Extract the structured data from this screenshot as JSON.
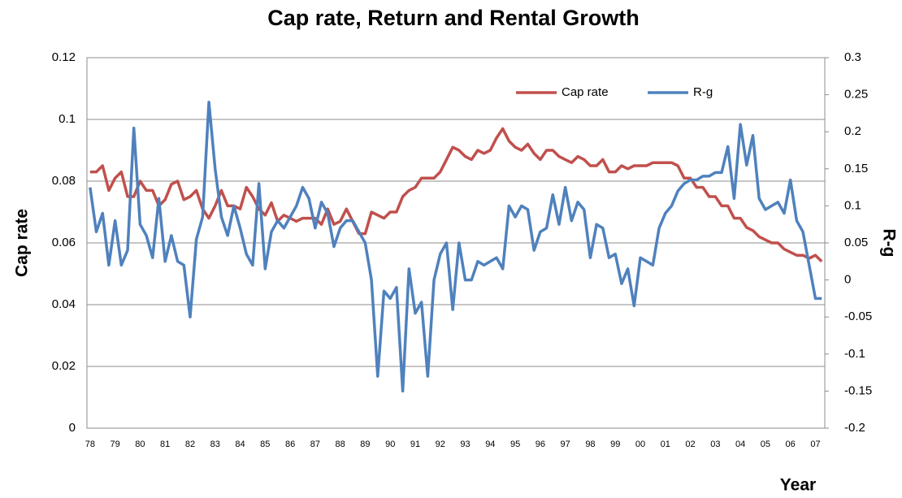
{
  "chart_data": {
    "type": "line",
    "title": "Cap rate, Return and Rental Growth",
    "x_label": "Year",
    "y_label": "Cap rate",
    "y2_label": "R-g",
    "categories": [
      "78",
      null,
      null,
      null,
      "79",
      null,
      null,
      null,
      "80",
      null,
      null,
      null,
      "81",
      null,
      null,
      null,
      "82",
      null,
      null,
      null,
      "83",
      null,
      null,
      null,
      "84",
      null,
      null,
      null,
      "85",
      null,
      null,
      null,
      "86",
      null,
      null,
      null,
      "87",
      null,
      null,
      null,
      "88",
      null,
      null,
      null,
      "89",
      null,
      null,
      null,
      "90",
      null,
      null,
      null,
      "91",
      null,
      null,
      null,
      "92",
      null,
      null,
      null,
      "93",
      null,
      null,
      null,
      "94",
      null,
      null,
      null,
      "95",
      null,
      null,
      null,
      "96",
      null,
      null,
      null,
      "97",
      null,
      null,
      null,
      "98",
      null,
      null,
      null,
      "99",
      null,
      null,
      null,
      "00",
      null,
      null,
      null,
      "01",
      null,
      null,
      null,
      "02",
      null,
      null,
      null,
      "03",
      null,
      null,
      null,
      "04",
      null,
      null,
      null,
      "05",
      null,
      null,
      null,
      "06",
      null,
      null,
      null,
      "07",
      null
    ],
    "series": [
      {
        "name": "Cap rate",
        "color": "#c0504d",
        "axis": "y",
        "values": [
          0.083,
          0.083,
          0.085,
          0.077,
          0.081,
          0.083,
          0.075,
          0.075,
          0.08,
          0.077,
          0.077,
          0.072,
          0.074,
          0.079,
          0.08,
          0.074,
          0.075,
          0.077,
          0.071,
          0.068,
          0.072,
          0.077,
          0.072,
          0.072,
          0.071,
          0.078,
          0.075,
          0.071,
          0.069,
          0.073,
          0.067,
          0.069,
          0.068,
          0.067,
          0.068,
          0.068,
          0.068,
          0.066,
          0.071,
          0.066,
          0.067,
          0.071,
          0.067,
          0.063,
          0.063,
          0.07,
          0.069,
          0.068,
          0.07,
          0.07,
          0.075,
          0.077,
          0.078,
          0.081,
          0.081,
          0.081,
          0.083,
          0.087,
          0.091,
          0.09,
          0.088,
          0.087,
          0.09,
          0.089,
          0.09,
          0.094,
          0.097,
          0.093,
          0.091,
          0.09,
          0.092,
          0.089,
          0.087,
          0.09,
          0.09,
          0.088,
          0.087,
          0.086,
          0.088,
          0.087,
          0.085,
          0.085,
          0.087,
          0.083,
          0.083,
          0.085,
          0.084,
          0.085,
          0.085,
          0.085,
          0.086,
          0.086,
          0.086,
          0.086,
          0.085,
          0.081,
          0.081,
          0.078,
          0.078,
          0.075,
          0.075,
          0.072,
          0.072,
          0.068,
          0.068,
          0.065,
          0.064,
          0.062,
          0.061,
          0.06,
          0.06,
          0.058,
          0.057,
          0.056,
          0.056,
          0.055,
          0.056,
          0.054
        ]
      },
      {
        "name": "R-g",
        "color": "#4f81bd",
        "axis": "y2",
        "values": [
          0.125,
          0.065,
          0.09,
          0.02,
          0.08,
          0.02,
          0.04,
          0.205,
          0.075,
          0.06,
          0.03,
          0.11,
          0.025,
          0.06,
          0.025,
          0.02,
          -0.05,
          0.055,
          0.085,
          0.24,
          0.15,
          0.085,
          0.06,
          0.1,
          0.07,
          0.035,
          0.02,
          0.13,
          0.015,
          0.065,
          0.08,
          0.07,
          0.085,
          0.1,
          0.125,
          0.11,
          0.07,
          0.105,
          0.09,
          0.045,
          0.07,
          0.08,
          0.08,
          0.065,
          0.05,
          0.0,
          -0.13,
          -0.015,
          -0.025,
          -0.01,
          -0.15,
          0.015,
          -0.045,
          -0.03,
          -0.13,
          0.0,
          0.035,
          0.05,
          -0.04,
          0.05,
          0.0,
          0.0,
          0.025,
          0.02,
          0.025,
          0.03,
          0.015,
          0.1,
          0.085,
          0.1,
          0.095,
          0.04,
          0.065,
          0.07,
          0.115,
          0.075,
          0.125,
          0.08,
          0.105,
          0.095,
          0.03,
          0.075,
          0.07,
          0.03,
          0.035,
          -0.005,
          0.015,
          -0.035,
          0.03,
          0.025,
          0.02,
          0.07,
          0.09,
          0.1,
          0.12,
          0.13,
          0.135,
          0.135,
          0.14,
          0.14,
          0.145,
          0.145,
          0.18,
          0.11,
          0.21,
          0.155,
          0.195,
          0.11,
          0.095,
          0.1,
          0.105,
          0.09,
          0.135,
          0.08,
          0.065,
          0.02,
          -0.025,
          -0.025
        ]
      }
    ],
    "ylim": [
      0,
      0.12
    ],
    "yticks": [
      0,
      0.02,
      0.04,
      0.06,
      0.08,
      0.1,
      0.12
    ],
    "y2lim": [
      -0.2,
      0.3
    ],
    "y2ticks": [
      -0.2,
      -0.15,
      -0.1,
      -0.05,
      0,
      0.05,
      0.1,
      0.15,
      0.2,
      0.25,
      0.3
    ],
    "grid": true,
    "legend": "top"
  }
}
